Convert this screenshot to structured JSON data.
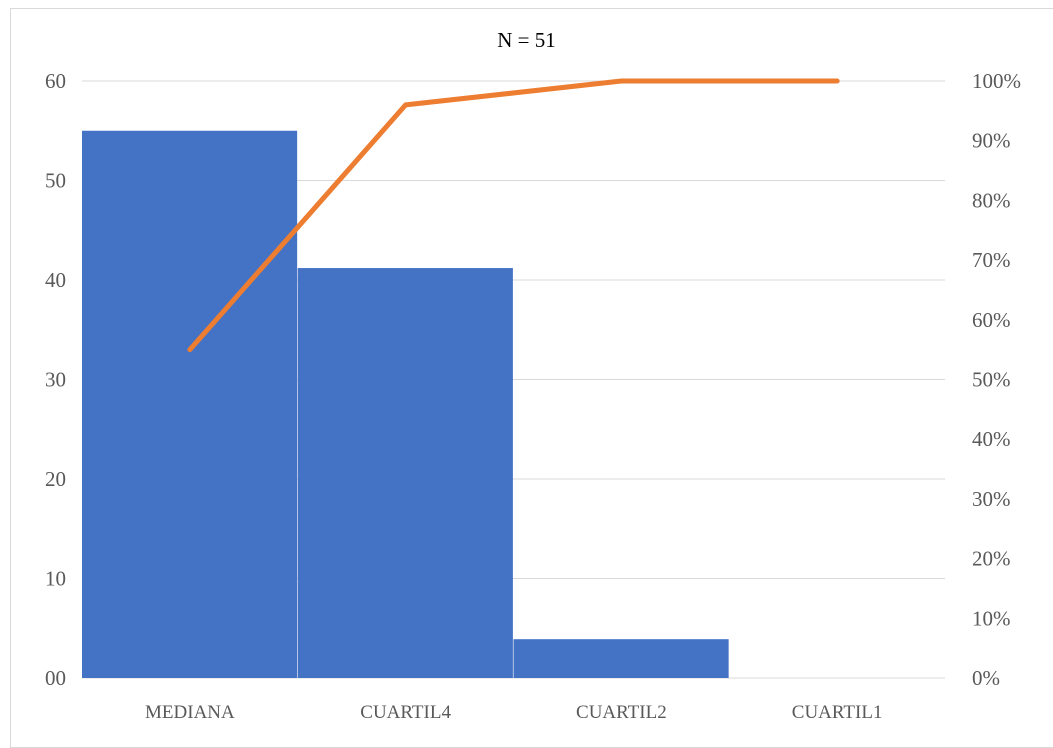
{
  "chart_data": {
    "type": "bar",
    "title": "N = 51",
    "categories": [
      "MEDIANA",
      "CUARTIL4",
      "CUARTIL2",
      "CUARTIL1"
    ],
    "series": [
      {
        "values": [
          55,
          41.2,
          3.9,
          0
        ],
        "color": "#4472c4",
        "axis": "left",
        "kind": "bar"
      },
      {
        "values": [
          0.55,
          0.96,
          1.0,
          1.0
        ],
        "color": "#ed7d31",
        "axis": "right",
        "kind": "line"
      }
    ],
    "ylim": [
      0,
      60
    ],
    "ylim_right": [
      0,
      1
    ],
    "y_ticks": [
      "00",
      "10",
      "20",
      "30",
      "40",
      "50",
      "60"
    ],
    "y2_ticks": [
      "0%",
      "10%",
      "20%",
      "30%",
      "40%",
      "50%",
      "60%",
      "70%",
      "80%",
      "90%",
      "100%"
    ],
    "grid": true,
    "legend": "none"
  }
}
